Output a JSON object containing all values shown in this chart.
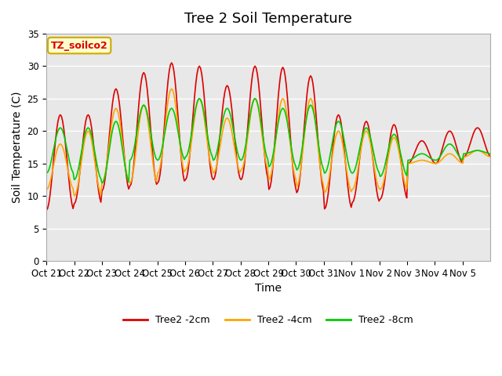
{
  "title": "Tree 2 Soil Temperature",
  "xlabel": "Time",
  "ylabel": "Soil Temperature (C)",
  "xlabels": [
    "Oct 21",
    "Oct 22",
    "Oct 23",
    "Oct 24",
    "Oct 25",
    "Oct 26",
    "Oct 27",
    "Oct 28",
    "Oct 29",
    "Oct 30",
    "Oct 31",
    "Nov 1",
    "Nov 2",
    "Nov 3",
    "Nov 4",
    "Nov 5"
  ],
  "ylim": [
    0,
    35
  ],
  "yticks": [
    0,
    5,
    10,
    15,
    20,
    25,
    30,
    35
  ],
  "color_2cm": "#DD0000",
  "color_4cm": "#FFA500",
  "color_8cm": "#00CC00",
  "legend_label_2cm": "Tree2 -2cm",
  "legend_label_4cm": "Tree2 -4cm",
  "legend_label_8cm": "Tree2 -8cm",
  "annotation_text": "TZ_soilco2",
  "plot_background": "#E8E8E8",
  "grid_color": "#FFFFFF",
  "title_fontsize": 13,
  "axis_label_fontsize": 10,
  "tick_fontsize": 8.5,
  "peaks_2cm": [
    22.5,
    22.5,
    26.5,
    29.0,
    30.5,
    30.0,
    27.0,
    30.0,
    29.8,
    28.5,
    22.5,
    21.5,
    21.0,
    18.5,
    20.0,
    20.5
  ],
  "troughs_2cm": [
    7.8,
    8.8,
    10.8,
    11.5,
    12.0,
    12.5,
    12.5,
    12.5,
    11.0,
    10.5,
    8.0,
    9.0,
    9.5,
    15.0,
    15.0,
    16.0
  ],
  "peaks_4cm": [
    18.0,
    20.0,
    23.5,
    24.0,
    26.5,
    25.0,
    22.0,
    25.0,
    25.0,
    25.0,
    20.0,
    20.0,
    19.0,
    15.5,
    16.5,
    17.0
  ],
  "troughs_4cm": [
    11.0,
    10.0,
    12.0,
    12.0,
    13.5,
    14.0,
    13.5,
    14.0,
    12.5,
    11.5,
    10.5,
    11.0,
    11.0,
    15.0,
    15.0,
    16.0
  ],
  "peaks_8cm": [
    20.5,
    20.5,
    21.5,
    24.0,
    23.5,
    25.0,
    23.5,
    25.0,
    23.5,
    24.0,
    21.5,
    20.5,
    19.5,
    16.5,
    18.0,
    17.0
  ],
  "troughs_8cm": [
    13.5,
    12.5,
    12.0,
    15.5,
    15.5,
    16.0,
    15.5,
    15.5,
    14.5,
    14.0,
    13.5,
    13.5,
    13.0,
    15.5,
    15.5,
    16.5
  ]
}
